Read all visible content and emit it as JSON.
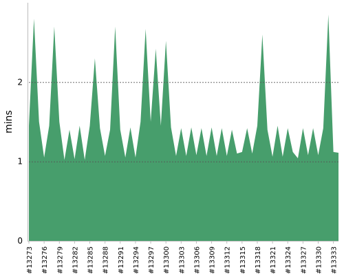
{
  "chart_data": {
    "type": "area",
    "ylabel": "mins",
    "xlabel": "",
    "ylim": [
      0,
      3
    ],
    "y_ticks": [
      0,
      1,
      2
    ],
    "grid": true,
    "x_tick_labels": [
      "#13273",
      "#13276",
      "#13279",
      "#13282",
      "#13285",
      "#13288",
      "#13291",
      "#13294",
      "#13297",
      "#13300",
      "#13303",
      "#13306",
      "#13309",
      "#13312",
      "#13315",
      "#13318",
      "#13321",
      "#13324",
      "#13327",
      "#13330",
      "#13333"
    ],
    "x": [
      "#13273",
      "#13274",
      "#13275",
      "#13276",
      "#13277",
      "#13278",
      "#13279",
      "#13280",
      "#13281",
      "#13282",
      "#13283",
      "#13284",
      "#13285",
      "#13286",
      "#13287",
      "#13288",
      "#13289",
      "#13290",
      "#13291",
      "#13292",
      "#13293",
      "#13294",
      "#13295",
      "#13296",
      "#13297",
      "#13298",
      "#13299",
      "#13300",
      "#13301",
      "#13302",
      "#13303",
      "#13304",
      "#13305",
      "#13306",
      "#13307",
      "#13308",
      "#13309",
      "#13310",
      "#13311",
      "#13312",
      "#13313",
      "#13314",
      "#13315",
      "#13316",
      "#13317",
      "#13318",
      "#13319",
      "#13320",
      "#13321",
      "#13322",
      "#13323",
      "#13324",
      "#13325",
      "#13326",
      "#13327",
      "#13328",
      "#13329",
      "#13330",
      "#13331",
      "#13332",
      "#13333",
      "#13334"
    ],
    "values": [
      1.45,
      2.8,
      1.5,
      1.05,
      1.45,
      2.7,
      1.5,
      1.02,
      1.4,
      1.03,
      1.45,
      1.02,
      1.45,
      2.3,
      1.42,
      1.07,
      1.4,
      2.7,
      1.4,
      1.05,
      1.43,
      1.05,
      1.5,
      2.67,
      1.5,
      2.42,
      1.45,
      2.52,
      1.43,
      1.07,
      1.42,
      1.07,
      1.43,
      1.08,
      1.42,
      1.07,
      1.43,
      1.07,
      1.42,
      1.07,
      1.4,
      1.1,
      1.12,
      1.42,
      1.1,
      1.45,
      2.6,
      1.4,
      1.06,
      1.45,
      1.06,
      1.42,
      1.12,
      1.04,
      1.42,
      1.08,
      1.42,
      1.08,
      1.42,
      2.85,
      1.12,
      1.11
    ],
    "fill_color": "#479e6c",
    "gridline_color": "#555555",
    "axis_color": "#bbbbbb"
  }
}
